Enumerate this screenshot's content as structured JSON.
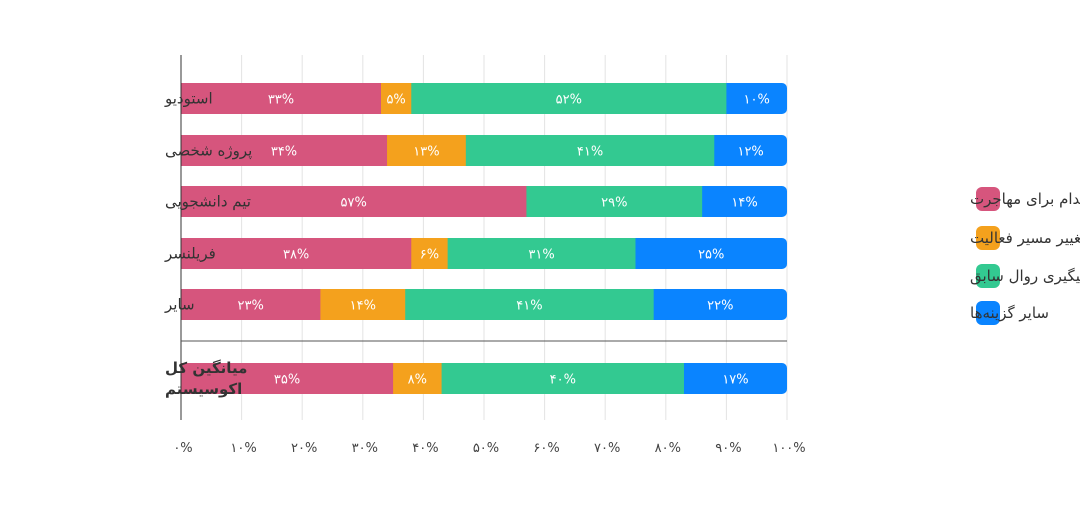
{
  "chart_data": {
    "type": "bar",
    "orientation": "horizontal",
    "stacked": true,
    "percent": true,
    "title": "",
    "xlabel": "",
    "ylabel": "",
    "xlim": [
      0,
      100
    ],
    "x_ticks": [
      0,
      10,
      20,
      30,
      40,
      50,
      60,
      70,
      80,
      90,
      100
    ],
    "x_tick_labels": [
      "۰%",
      "۱۰%",
      "۲۰%",
      "۳۰%",
      "۴۰%",
      "۵۰%",
      "۶۰%",
      "۷۰%",
      "۸۰%",
      "۹۰%",
      "۱۰۰%"
    ],
    "grid": true,
    "legend_position": "right",
    "categories": [
      "استودیو",
      "پروژه شخصی",
      "تیم دانشجویی",
      "فریلنسر",
      "سایر",
      "میانگین کل اکوسیستم"
    ],
    "series": [
      {
        "name": "اقدام برای مهاجرت",
        "color": "#d6557d",
        "values": [
          33,
          34,
          57,
          38,
          23,
          35
        ],
        "labels": [
          "۳۳%",
          "۳۴%",
          "۵۷%",
          "۳۸%",
          "۲۳%",
          "۳۵%"
        ]
      },
      {
        "name": "تغییر مسیر فعالیت",
        "color": "#f4a11d",
        "values": [
          5,
          13,
          0,
          6,
          14,
          8
        ],
        "labels": [
          "۵%",
          "۱۳%",
          "",
          "۶%",
          "۱۴%",
          "۸%"
        ]
      },
      {
        "name": "پیگیری روال سابق",
        "color": "#33c991",
        "values": [
          52,
          41,
          29,
          31,
          41,
          40
        ],
        "labels": [
          "۵۲%",
          "۴۱%",
          "۲۹%",
          "۳۱%",
          "۴۱%",
          "۴۰%"
        ]
      },
      {
        "name": "سایر گزینه‌ها",
        "color": "#0a84ff",
        "values": [
          10,
          12,
          14,
          25,
          22,
          17
        ],
        "labels": [
          "۱۰%",
          "۱۲%",
          "۱۴%",
          "۲۵%",
          "۲۲%",
          "۱۷%"
        ]
      }
    ],
    "category_display": [
      [
        "استودیو"
      ],
      [
        "پروژه شخصی"
      ],
      [
        "تیم دانشجویی"
      ],
      [
        "فریلنسر"
      ],
      [
        "سایر"
      ],
      [
        "میانگین کل",
        "اکوسیستم"
      ]
    ],
    "emphasized_category": "میانگین کل اکوسیستم"
  }
}
